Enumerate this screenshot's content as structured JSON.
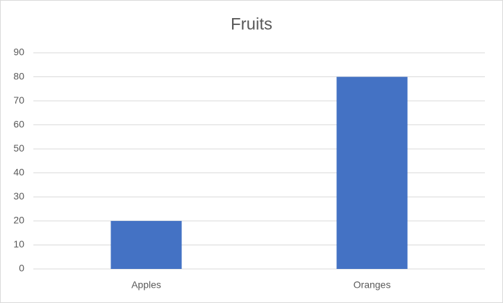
{
  "chart_data": {
    "type": "bar",
    "title": "Fruits",
    "categories": [
      "Apples",
      "Oranges"
    ],
    "values": [
      20,
      80
    ],
    "color": "#4472c4",
    "ylim": [
      0,
      90
    ],
    "yticks": [
      0,
      10,
      20,
      30,
      40,
      50,
      60,
      70,
      80,
      90
    ],
    "grid": true
  }
}
